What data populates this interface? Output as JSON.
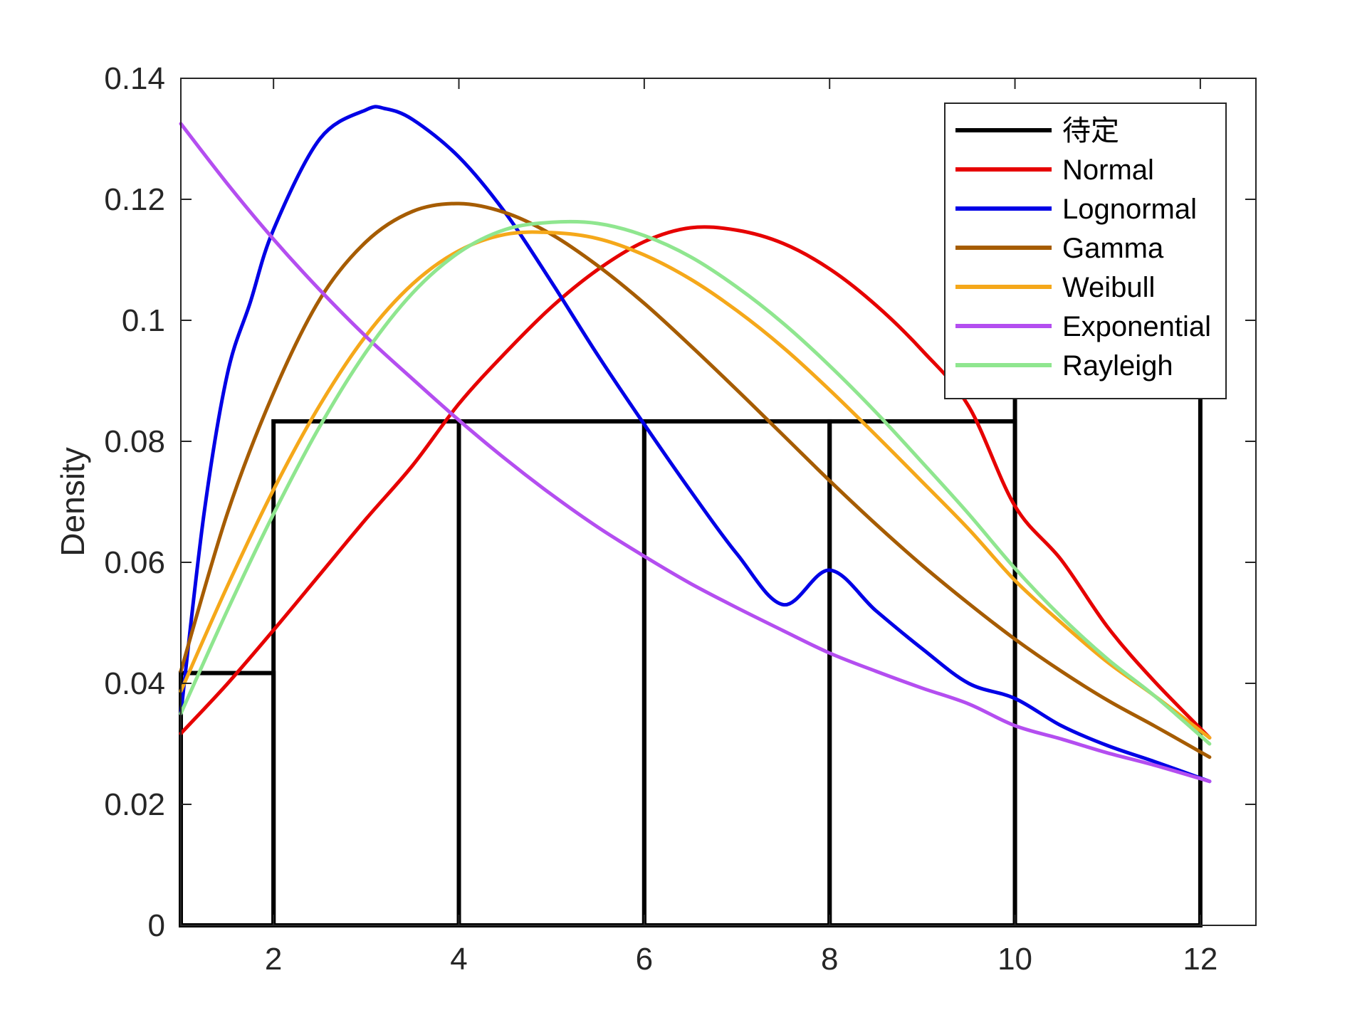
{
  "chart_data": {
    "type": "line",
    "title": "",
    "xlabel": "",
    "ylabel": "Density",
    "xlim": [
      1,
      12.6
    ],
    "ylim": [
      0,
      0.14
    ],
    "xticks": [
      2,
      4,
      6,
      8,
      10,
      12
    ],
    "xtick_labels": [
      "2",
      "4",
      "6",
      "8",
      "10",
      "12"
    ],
    "yticks": [
      0,
      0.02,
      0.04,
      0.06,
      0.08,
      0.1,
      0.12,
      0.14
    ],
    "ytick_labels": [
      "0",
      "0.02",
      "0.04",
      "0.06",
      "0.08",
      "0.1",
      "0.12",
      "0.14"
    ],
    "grid": false,
    "legend_position": "top-right",
    "histogram": {
      "name": "待定",
      "color": "#000000",
      "bin_edges": [
        1,
        2,
        4,
        6,
        8,
        10,
        12
      ],
      "values": [
        0.0417,
        0.0833,
        0.0833,
        0.0833,
        0.0833,
        0.125
      ]
    },
    "series": [
      {
        "name": "Normal",
        "color": "#e60000",
        "x": [
          1,
          1.5,
          2,
          2.5,
          3,
          3.5,
          4,
          4.5,
          5,
          5.5,
          6,
          6.5,
          7,
          7.5,
          8,
          8.5,
          9,
          9.5,
          10,
          10.5,
          11,
          11.5,
          12.1
        ],
        "y": [
          0.0317,
          0.0399,
          0.0488,
          0.058,
          0.0672,
          0.076,
          0.0862,
          0.0946,
          0.1022,
          0.1084,
          0.113,
          0.1153,
          0.1149,
          0.1127,
          0.1085,
          0.1025,
          0.095,
          0.0858,
          0.0693,
          0.0604,
          0.0493,
          0.0404,
          0.031
        ]
      },
      {
        "name": "Lognormal",
        "color": "#0000e6",
        "x": [
          1,
          1.25,
          1.5,
          1.75,
          2,
          2.5,
          3,
          3.2,
          3.5,
          4,
          4.5,
          5,
          5.5,
          6,
          6.5,
          7,
          7.5,
          8,
          8.5,
          9,
          9.5,
          10,
          10.5,
          11,
          11.5,
          12.1
        ],
        "y": [
          0.035,
          0.068,
          0.091,
          0.103,
          0.115,
          0.13,
          0.1348,
          0.135,
          0.1332,
          0.127,
          0.1178,
          0.1063,
          0.0942,
          0.0828,
          0.0718,
          0.0614,
          0.053,
          0.0587,
          0.052,
          0.0457,
          0.04,
          0.0375,
          0.033,
          0.0297,
          0.0271,
          0.0238
        ]
      },
      {
        "name": "Gamma",
        "color": "#a65c00",
        "x": [
          1,
          1.5,
          2,
          2.5,
          3,
          3.5,
          4,
          4.5,
          5,
          5.5,
          6,
          6.5,
          7,
          7.5,
          8,
          8.5,
          9,
          9.5,
          10,
          10.5,
          11,
          11.5,
          12.1
        ],
        "y": [
          0.042,
          0.068,
          0.088,
          0.1035,
          0.113,
          0.118,
          0.1193,
          0.1178,
          0.1142,
          0.109,
          0.1028,
          0.0958,
          0.0885,
          0.081,
          0.0735,
          0.0663,
          0.0595,
          0.0532,
          0.0473,
          0.042,
          0.0372,
          0.033,
          0.0278
        ]
      },
      {
        "name": "Weibull",
        "color": "#f5a81a",
        "x": [
          1,
          1.5,
          2,
          2.5,
          3,
          3.5,
          4,
          4.5,
          5,
          5.5,
          6,
          6.5,
          7,
          7.5,
          8,
          8.5,
          9,
          9.5,
          10,
          10.5,
          11,
          11.5,
          12.1
        ],
        "y": [
          0.0387,
          0.056,
          0.072,
          0.086,
          0.0975,
          0.106,
          0.1115,
          0.1142,
          0.1145,
          0.1135,
          0.1108,
          0.1068,
          0.1016,
          0.0955,
          0.0885,
          0.081,
          0.0733,
          0.0655,
          0.057,
          0.05,
          0.0435,
          0.038,
          0.031
        ]
      },
      {
        "name": "Exponential",
        "color": "#b44ef0",
        "x": [
          1,
          1.5,
          2,
          2.5,
          3,
          3.5,
          4,
          4.5,
          5,
          5.5,
          6,
          6.5,
          7,
          7.5,
          8,
          8.5,
          9,
          9.5,
          10,
          10.5,
          11,
          11.5,
          12.1
        ],
        "y": [
          0.1325,
          0.1226,
          0.1134,
          0.105,
          0.0973,
          0.0903,
          0.0835,
          0.0771,
          0.0712,
          0.0658,
          0.061,
          0.0565,
          0.0525,
          0.0487,
          0.045,
          0.042,
          0.0392,
          0.0366,
          0.033,
          0.0308,
          0.0285,
          0.0265,
          0.0238
        ]
      },
      {
        "name": "Rayleigh",
        "color": "#8fe68f",
        "x": [
          1,
          1.5,
          2,
          2.5,
          3,
          3.5,
          4,
          4.5,
          5,
          5.5,
          6,
          6.5,
          7,
          7.5,
          8,
          8.5,
          9,
          9.5,
          10,
          10.5,
          11,
          11.5,
          12.1
        ],
        "y": [
          0.035,
          0.052,
          0.068,
          0.0825,
          0.0948,
          0.1045,
          0.1112,
          0.115,
          0.1162,
          0.116,
          0.114,
          0.1105,
          0.1055,
          0.0995,
          0.0925,
          0.0848,
          0.0765,
          0.068,
          0.059,
          0.051,
          0.044,
          0.038,
          0.03
        ]
      }
    ]
  }
}
